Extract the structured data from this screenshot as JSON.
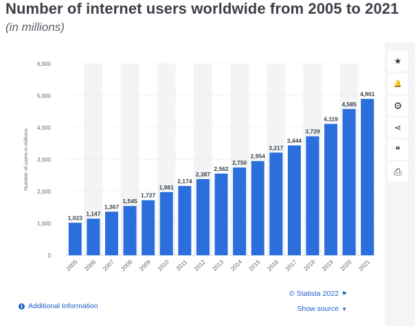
{
  "header": {
    "title": "Number of internet users worldwide from 2005 to 2021",
    "subtitle": "(in millions)"
  },
  "toolbar": {
    "buttons": [
      {
        "icon": "star-icon",
        "glyph": "★"
      },
      {
        "icon": "bell-icon",
        "glyph": "🔔"
      },
      {
        "icon": "gear-icon",
        "glyph": "⚙"
      },
      {
        "icon": "share-icon",
        "glyph": "⋖"
      },
      {
        "icon": "quote-icon",
        "glyph": "❝"
      },
      {
        "icon": "print-icon",
        "glyph": "⎙"
      }
    ]
  },
  "footer": {
    "additional_info": "Additional Information",
    "credit": "© Statista 2022",
    "show_source": "Show source"
  },
  "colors": {
    "bar": "#2a6fdb",
    "stripe": "#f3f4f6",
    "axis_text": "#60656d",
    "label_text": "#3a3f47",
    "link": "#1a5fc8"
  },
  "chart_data": {
    "type": "bar",
    "categories": [
      "2005",
      "2006",
      "2007",
      "2008",
      "2009",
      "2010",
      "2011",
      "2012",
      "2013",
      "2014",
      "2015",
      "2016",
      "2017",
      "2018",
      "2019",
      "2020",
      "2021"
    ],
    "values": [
      1023,
      1147,
      1367,
      1545,
      1727,
      1981,
      2174,
      2387,
      2562,
      2750,
      2954,
      3217,
      3444,
      3729,
      4119,
      4585,
      4901
    ],
    "value_labels": [
      "1,023",
      "1,147",
      "1,367",
      "1,545",
      "1,727",
      "1,981",
      "2,174",
      "2,387",
      "2,562",
      "2,750",
      "2,954",
      "3,217",
      "3,444",
      "3,729",
      "4,119",
      "4,585",
      "4,901"
    ],
    "y_ticks": [
      0,
      1000,
      2000,
      3000,
      4000,
      5000,
      6000
    ],
    "y_tick_labels": [
      "0",
      "1,000",
      "2,000",
      "3,000",
      "4,000",
      "5,000",
      "6,000"
    ],
    "ylim": [
      0,
      6000
    ],
    "ylabel": "Number of users in millions",
    "xlabel": "",
    "grid": true
  }
}
